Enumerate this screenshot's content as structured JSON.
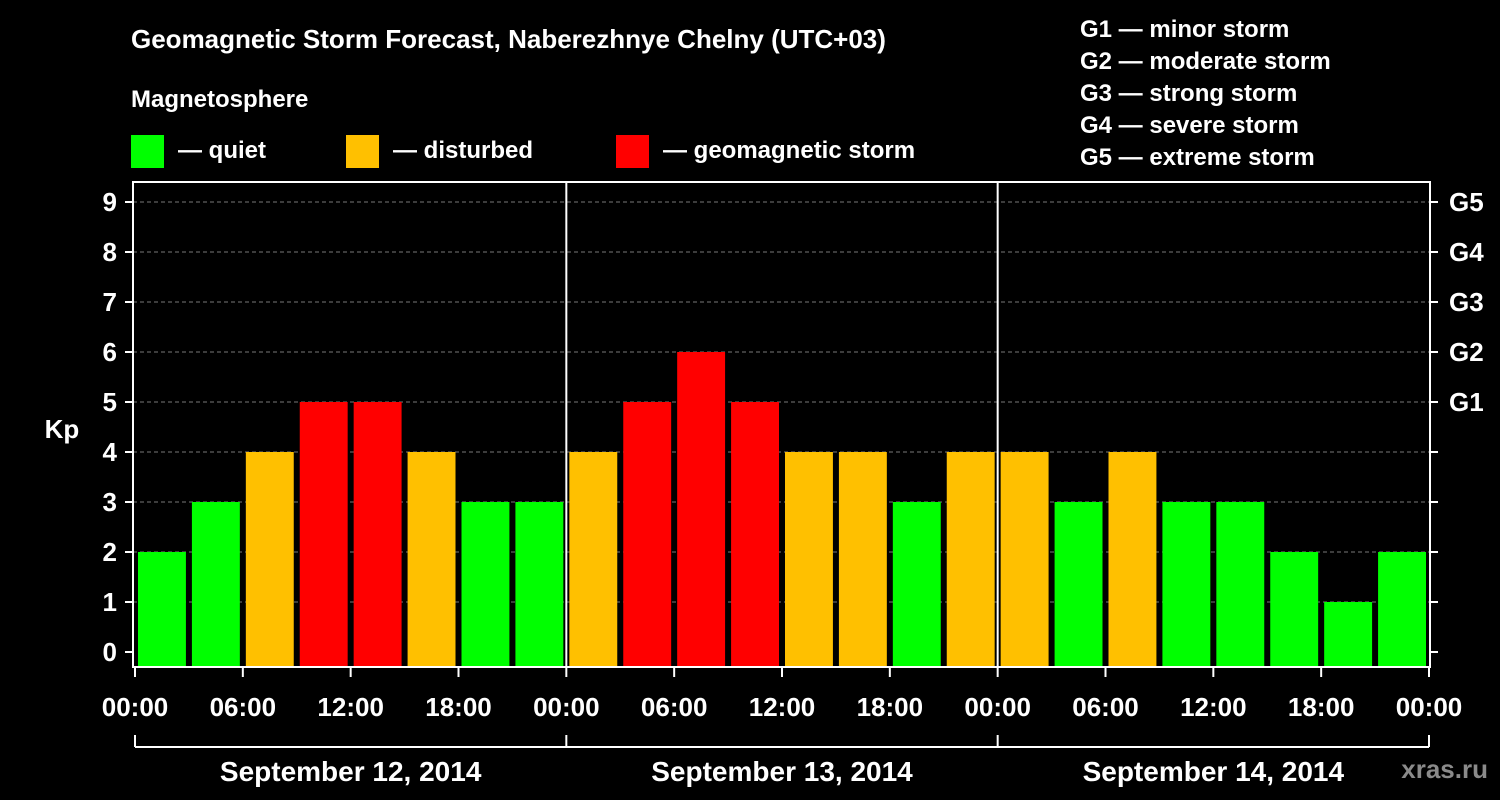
{
  "chart_data": {
    "type": "bar",
    "title": "Geomagnetic Storm Forecast, Naberezhnye Chelny (UTC+03)",
    "ylabel": "Kp",
    "ylim": [
      0,
      9
    ],
    "yticks": [
      "0",
      "1",
      "2",
      "3",
      "4",
      "5",
      "6",
      "7",
      "8",
      "9"
    ],
    "right_ticks": [
      {
        "kp": 5,
        "label": "G1"
      },
      {
        "kp": 6,
        "label": "G2"
      },
      {
        "kp": 7,
        "label": "G3"
      },
      {
        "kp": 8,
        "label": "G4"
      },
      {
        "kp": 9,
        "label": "G5"
      }
    ],
    "xticks": [
      "00:00",
      "06:00",
      "12:00",
      "18:00",
      "00:00",
      "06:00",
      "12:00",
      "18:00",
      "00:00",
      "06:00",
      "12:00",
      "18:00",
      "00:00"
    ],
    "days": [
      "September 12, 2014",
      "September 13, 2014",
      "September 14, 2014"
    ],
    "interval_hours": 3,
    "values": [
      2,
      3,
      4,
      5,
      5,
      4,
      3,
      3,
      4,
      5,
      6,
      5,
      4,
      4,
      3,
      4,
      4,
      3,
      4,
      3,
      3,
      2,
      1,
      2
    ],
    "colors": {
      "quiet": "#00ff00",
      "disturbed": "#ffc000",
      "storm": "#ff0000"
    },
    "thresholds": {
      "disturbed": 4,
      "storm": 5
    }
  },
  "legend": {
    "title": "Magnetosphere",
    "items": [
      {
        "label": "— quiet",
        "color": "#00ff00"
      },
      {
        "label": "— disturbed",
        "color": "#ffc000"
      },
      {
        "label": "— geomagnetic storm",
        "color": "#ff0000"
      }
    ]
  },
  "storm_scale": [
    "G1 — minor storm",
    "G2 — moderate storm",
    "G3 — strong storm",
    "G4 — severe storm",
    "G5 — extreme storm"
  ],
  "watermark": "xras.ru"
}
